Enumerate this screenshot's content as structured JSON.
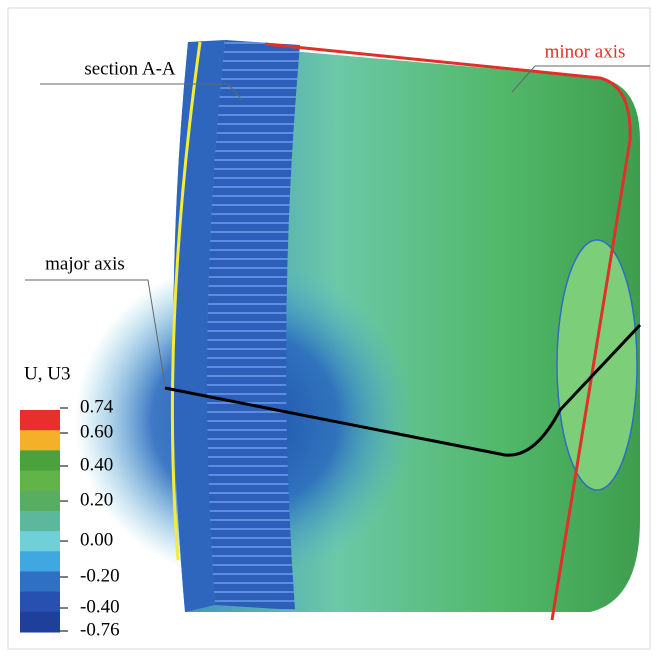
{
  "annotations": {
    "section": "section A-A",
    "minor_axis": "minor axis",
    "major_axis": "major axis"
  },
  "legend": {
    "title": "U, U3",
    "labels": [
      "0.74",
      "0.60",
      "0.40",
      "0.20",
      "0.00",
      "-0.20",
      "-0.40",
      "-0.76"
    ]
  }
}
